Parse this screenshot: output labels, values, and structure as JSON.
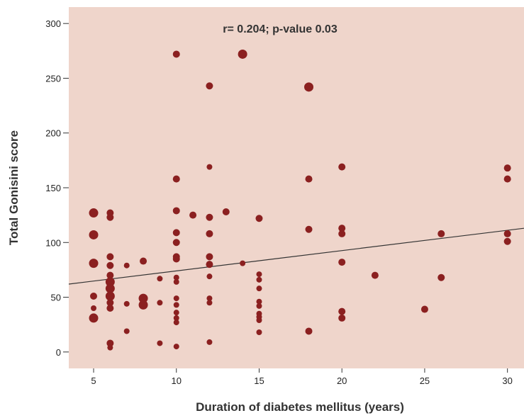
{
  "chart_data": {
    "type": "scatter",
    "xlabel": "Duration of diabetes mellitus (years)",
    "ylabel": "Total Gonisini score",
    "annotation": "r= 0.204; p-value 0.03",
    "xlim": [
      3.5,
      31
    ],
    "ylim": [
      -15,
      315
    ],
    "xticks": [
      5,
      10,
      15,
      20,
      25,
      30
    ],
    "yticks": [
      0,
      50,
      100,
      150,
      200,
      250,
      300
    ],
    "grid": false,
    "background_color": "#efd5cb",
    "point_color": "#8b2020",
    "line_color": "#333333",
    "regression_line": {
      "x": [
        3.5,
        31
      ],
      "y": [
        62,
        113
      ]
    },
    "points": [
      {
        "x": 5,
        "y": 127,
        "size": "large"
      },
      {
        "x": 5,
        "y": 107,
        "size": "large"
      },
      {
        "x": 5,
        "y": 81,
        "size": "large"
      },
      {
        "x": 5,
        "y": 51,
        "size": "medium"
      },
      {
        "x": 5,
        "y": 40,
        "size": "small"
      },
      {
        "x": 5,
        "y": 31,
        "size": "large"
      },
      {
        "x": 6,
        "y": 127,
        "size": "medium"
      },
      {
        "x": 6,
        "y": 123,
        "size": "medium"
      },
      {
        "x": 6,
        "y": 87,
        "size": "medium"
      },
      {
        "x": 6,
        "y": 79,
        "size": "medium"
      },
      {
        "x": 6,
        "y": 70,
        "size": "medium"
      },
      {
        "x": 6,
        "y": 64,
        "size": "large"
      },
      {
        "x": 6,
        "y": 58,
        "size": "large"
      },
      {
        "x": 6,
        "y": 51,
        "size": "large"
      },
      {
        "x": 6,
        "y": 45,
        "size": "medium"
      },
      {
        "x": 6,
        "y": 40,
        "size": "medium"
      },
      {
        "x": 6,
        "y": 8,
        "size": "medium"
      },
      {
        "x": 6,
        "y": 4,
        "size": "small"
      },
      {
        "x": 7,
        "y": 79,
        "size": "small"
      },
      {
        "x": 7,
        "y": 44,
        "size": "small"
      },
      {
        "x": 7,
        "y": 19,
        "size": "small"
      },
      {
        "x": 8,
        "y": 83,
        "size": "medium"
      },
      {
        "x": 8,
        "y": 49,
        "size": "large"
      },
      {
        "x": 8,
        "y": 43,
        "size": "large"
      },
      {
        "x": 9,
        "y": 67,
        "size": "small"
      },
      {
        "x": 9,
        "y": 45,
        "size": "small"
      },
      {
        "x": 9,
        "y": 8,
        "size": "small"
      },
      {
        "x": 10,
        "y": 272,
        "size": "medium"
      },
      {
        "x": 10,
        "y": 158,
        "size": "medium"
      },
      {
        "x": 10,
        "y": 129,
        "size": "medium"
      },
      {
        "x": 10,
        "y": 109,
        "size": "medium"
      },
      {
        "x": 10,
        "y": 100,
        "size": "medium"
      },
      {
        "x": 10,
        "y": 87,
        "size": "medium"
      },
      {
        "x": 10,
        "y": 85,
        "size": "medium"
      },
      {
        "x": 10,
        "y": 68,
        "size": "small"
      },
      {
        "x": 10,
        "y": 64,
        "size": "small"
      },
      {
        "x": 10,
        "y": 49,
        "size": "small"
      },
      {
        "x": 10,
        "y": 43,
        "size": "small"
      },
      {
        "x": 10,
        "y": 36,
        "size": "small"
      },
      {
        "x": 10,
        "y": 31,
        "size": "small"
      },
      {
        "x": 10,
        "y": 27,
        "size": "small"
      },
      {
        "x": 10,
        "y": 5,
        "size": "small"
      },
      {
        "x": 11,
        "y": 125,
        "size": "medium"
      },
      {
        "x": 12,
        "y": 243,
        "size": "medium"
      },
      {
        "x": 12,
        "y": 169,
        "size": "small"
      },
      {
        "x": 12,
        "y": 123,
        "size": "medium"
      },
      {
        "x": 12,
        "y": 108,
        "size": "medium"
      },
      {
        "x": 12,
        "y": 87,
        "size": "medium"
      },
      {
        "x": 12,
        "y": 80,
        "size": "medium"
      },
      {
        "x": 12,
        "y": 69,
        "size": "small"
      },
      {
        "x": 12,
        "y": 49,
        "size": "small"
      },
      {
        "x": 12,
        "y": 45,
        "size": "small"
      },
      {
        "x": 12,
        "y": 9,
        "size": "small"
      },
      {
        "x": 13,
        "y": 128,
        "size": "medium"
      },
      {
        "x": 14,
        "y": 272,
        "size": "large"
      },
      {
        "x": 14,
        "y": 81,
        "size": "small"
      },
      {
        "x": 15,
        "y": 122,
        "size": "medium"
      },
      {
        "x": 15,
        "y": 71,
        "size": "small"
      },
      {
        "x": 15,
        "y": 66,
        "size": "small"
      },
      {
        "x": 15,
        "y": 58,
        "size": "small"
      },
      {
        "x": 15,
        "y": 46,
        "size": "small"
      },
      {
        "x": 15,
        "y": 42,
        "size": "small"
      },
      {
        "x": 15,
        "y": 35,
        "size": "small"
      },
      {
        "x": 15,
        "y": 32,
        "size": "small"
      },
      {
        "x": 15,
        "y": 29,
        "size": "small"
      },
      {
        "x": 15,
        "y": 18,
        "size": "small"
      },
      {
        "x": 18,
        "y": 242,
        "size": "large"
      },
      {
        "x": 18,
        "y": 158,
        "size": "medium"
      },
      {
        "x": 18,
        "y": 112,
        "size": "medium"
      },
      {
        "x": 18,
        "y": 19,
        "size": "medium"
      },
      {
        "x": 20,
        "y": 169,
        "size": "medium"
      },
      {
        "x": 20,
        "y": 113,
        "size": "medium"
      },
      {
        "x": 20,
        "y": 108,
        "size": "medium"
      },
      {
        "x": 20,
        "y": 82,
        "size": "medium"
      },
      {
        "x": 20,
        "y": 37,
        "size": "medium"
      },
      {
        "x": 20,
        "y": 31,
        "size": "medium"
      },
      {
        "x": 22,
        "y": 70,
        "size": "medium"
      },
      {
        "x": 25,
        "y": 39,
        "size": "medium"
      },
      {
        "x": 26,
        "y": 108,
        "size": "medium"
      },
      {
        "x": 26,
        "y": 68,
        "size": "medium"
      },
      {
        "x": 30,
        "y": 168,
        "size": "medium"
      },
      {
        "x": 30,
        "y": 158,
        "size": "medium"
      },
      {
        "x": 30,
        "y": 108,
        "size": "medium"
      },
      {
        "x": 30,
        "y": 101,
        "size": "medium"
      }
    ]
  }
}
